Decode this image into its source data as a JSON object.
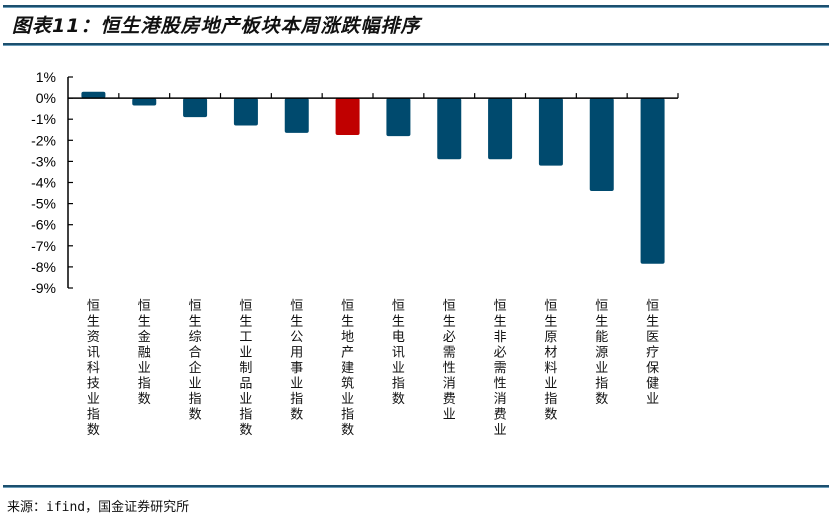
{
  "header": {
    "title": "图表11：恒生港股房地产板块本周涨跌幅排序"
  },
  "footer": {
    "source": "来源：ifind，国金证券研究所"
  },
  "colors": {
    "bar_default": "#004a6e",
    "bar_highlight": "#c00000",
    "rule": "#1c4f6e",
    "axis": "#000000"
  },
  "chart_data": {
    "type": "bar",
    "title": "恒生港股房地产板块本周涨跌幅排序",
    "xlabel": "",
    "ylabel": "",
    "ylim": [
      -0.09,
      0.01
    ],
    "yticks": [
      "1%",
      "0%",
      "-1%",
      "-2%",
      "-3%",
      "-4%",
      "-5%",
      "-6%",
      "-7%",
      "-8%",
      "-9%"
    ],
    "grid": false,
    "legend": null,
    "highlight_index": 5,
    "categories": [
      "恒生资讯科技业指数",
      "恒生金融业指数",
      "恒生综合企业指数",
      "恒生工业制品业指数",
      "恒生公用事业指数",
      "恒生地产建筑业指数",
      "恒生电讯业指数",
      "恒生必需性消费业",
      "恒生非必需性消费业",
      "恒生原材料业指数",
      "恒生能源业指数",
      "恒生医疗保健业"
    ],
    "values": [
      0.3,
      -0.35,
      -0.9,
      -1.3,
      -1.65,
      -1.75,
      -1.8,
      -2.9,
      -2.9,
      -3.2,
      -4.4,
      -7.85
    ],
    "unit": "%"
  }
}
